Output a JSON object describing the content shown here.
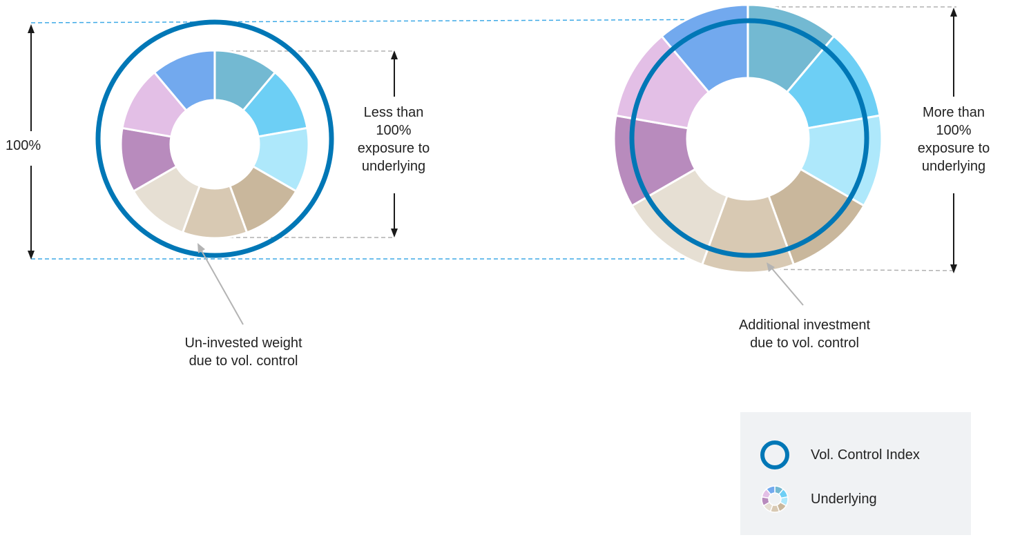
{
  "labels": {
    "full_exposure": "100%",
    "less_than": [
      "Less than",
      "100%",
      "exposure to",
      "underlying"
    ],
    "more_than": [
      "More than",
      "100%",
      "exposure to",
      "underlying"
    ],
    "uninvested": [
      "Un-invested weight",
      "due to vol. control"
    ],
    "additional": [
      "Additional investment",
      "due to vol. control"
    ]
  },
  "legend": {
    "vol_control_index": "Vol. Control Index",
    "underlying": "Underlying"
  },
  "colors": {
    "index_ring": "#0077b6",
    "guide_dash_blue": "#3da9e6",
    "guide_dash_gray": "#b0b0b0",
    "arrow": "#1a1a1a",
    "pointer": "#b3b3b3",
    "segments": [
      "#73b9d2",
      "#6dcff5",
      "#aee8fb",
      "#c9b79c",
      "#d8c9b3",
      "#e6dfd3",
      "#b88bbd",
      "#e3bfe6",
      "#72a9ee"
    ]
  },
  "underlying_segments": [
    {
      "color_index": 0,
      "share": 0.1111
    },
    {
      "color_index": 1,
      "share": 0.1111
    },
    {
      "color_index": 2,
      "share": 0.1111
    },
    {
      "color_index": 3,
      "share": 0.1111
    },
    {
      "color_index": 4,
      "share": 0.1111
    },
    {
      "color_index": 5,
      "share": 0.1111
    },
    {
      "color_index": 6,
      "share": 0.1111
    },
    {
      "color_index": 7,
      "share": 0.1111
    },
    {
      "color_index": 8,
      "share": 0.1111
    }
  ]
}
